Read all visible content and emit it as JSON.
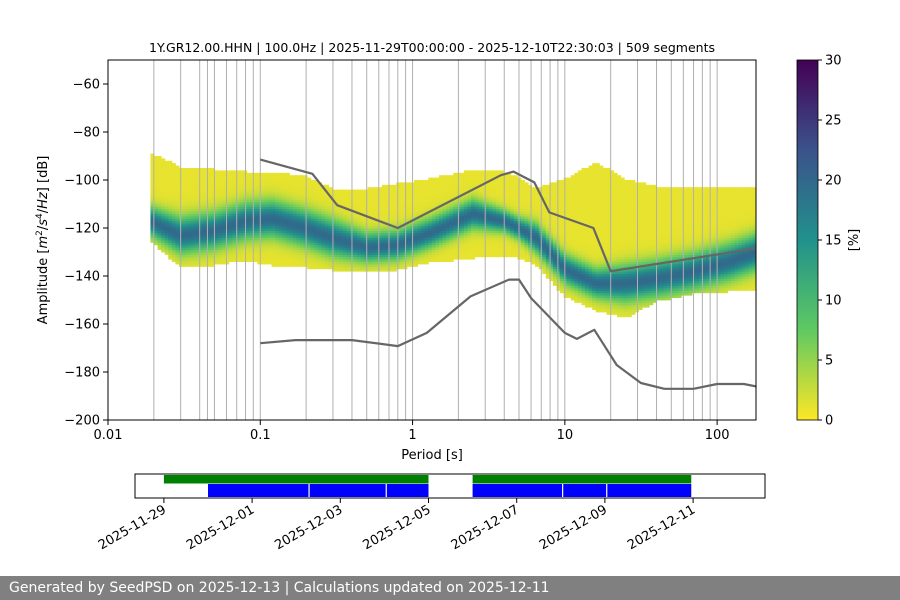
{
  "chart_data": {
    "type": "heatmap",
    "title": "1Y.GR12.00.HHN | 100.0Hz | 2025-11-29T00:00:00 - 2025-12-10T22:30:03 | 509 segments",
    "xlabel": "Period [s]",
    "ylabel_parts": [
      "Amplitude [",
      "m",
      "2",
      "/",
      "s",
      "4",
      "/",
      "Hz",
      "] [dB]"
    ],
    "xscale": "log",
    "xlim": [
      0.01,
      180
    ],
    "ylim": [
      -200,
      -50
    ],
    "x_ticks": [
      {
        "v": 0.01,
        "label": "0.01"
      },
      {
        "v": 0.1,
        "label": "0.1"
      },
      {
        "v": 1,
        "label": "1"
      },
      {
        "v": 10,
        "label": "10"
      },
      {
        "v": 100,
        "label": "100"
      }
    ],
    "y_ticks": [
      {
        "v": -60,
        "label": "−60"
      },
      {
        "v": -80,
        "label": "−80"
      },
      {
        "v": -100,
        "label": "−100"
      },
      {
        "v": -120,
        "label": "−120"
      },
      {
        "v": -140,
        "label": "−140"
      },
      {
        "v": -160,
        "label": "−160"
      },
      {
        "v": -180,
        "label": "−180"
      },
      {
        "v": -200,
        "label": "−200"
      }
    ],
    "grid_periods": [
      0.02,
      0.03,
      0.04,
      0.045,
      0.05,
      0.06,
      0.07,
      0.08,
      0.09,
      0.1,
      0.2,
      0.3,
      0.4,
      0.5,
      0.6,
      0.7,
      0.8,
      0.9,
      1,
      2,
      3,
      4,
      5,
      6,
      7,
      8,
      9,
      10,
      20,
      30,
      40,
      50,
      60,
      70,
      80,
      90,
      100
    ],
    "colorbar": {
      "label": "[%]",
      "min": 0,
      "max": 30,
      "ticks": [
        0,
        5,
        10,
        15,
        20,
        25,
        30
      ]
    },
    "reference_curves": [
      {
        "points": [
          [
            0.1,
            -91.5
          ],
          [
            0.22,
            -97.4
          ],
          [
            0.32,
            -110.5
          ],
          [
            0.8,
            -120.0
          ],
          [
            3.8,
            -98.0
          ],
          [
            4.6,
            -96.5
          ],
          [
            6.3,
            -101.0
          ],
          [
            7.9,
            -113.5
          ],
          [
            15.4,
            -120.0
          ],
          [
            20,
            -138.0
          ],
          [
            180,
            -128.5
          ]
        ]
      },
      {
        "points": [
          [
            0.1,
            -168.0
          ],
          [
            0.17,
            -166.7
          ],
          [
            0.4,
            -166.7
          ],
          [
            0.8,
            -169.2
          ],
          [
            1.24,
            -163.7
          ],
          [
            2.4,
            -148.5
          ],
          [
            4.3,
            -141.5
          ],
          [
            5.0,
            -141.5
          ],
          [
            6.0,
            -149.2
          ],
          [
            10,
            -163.7
          ],
          [
            12,
            -166.2
          ],
          [
            15.6,
            -162.4
          ],
          [
            21.9,
            -177.1
          ],
          [
            31.6,
            -184.6
          ],
          [
            45,
            -187.0
          ],
          [
            70,
            -187.0
          ],
          [
            100,
            -185.0
          ],
          [
            150,
            -185.0
          ],
          [
            180,
            -186.0
          ]
        ]
      }
    ],
    "psd_ridge": [
      {
        "p": 0.019,
        "center": -117,
        "spread": 4,
        "low": -125,
        "high": -89
      },
      {
        "p": 0.03,
        "center": -123,
        "spread": 5,
        "low": -136,
        "high": -95
      },
      {
        "p": 0.05,
        "center": -121,
        "spread": 5,
        "low": -135,
        "high": -96
      },
      {
        "p": 0.08,
        "center": -117,
        "spread": 5,
        "low": -133,
        "high": -97
      },
      {
        "p": 0.12,
        "center": -116,
        "spread": 5,
        "low": -135,
        "high": -97
      },
      {
        "p": 0.2,
        "center": -120,
        "spread": 5,
        "low": -136,
        "high": -99
      },
      {
        "p": 0.3,
        "center": -124,
        "spread": 5,
        "low": -137,
        "high": -104
      },
      {
        "p": 0.5,
        "center": -128,
        "spread": 4,
        "low": -138,
        "high": -104
      },
      {
        "p": 0.8,
        "center": -127,
        "spread": 4,
        "low": -137,
        "high": -102
      },
      {
        "p": 1.3,
        "center": -122,
        "spread": 4,
        "low": -134,
        "high": -100
      },
      {
        "p": 2.5,
        "center": -114,
        "spread": 4,
        "low": -132,
        "high": -96
      },
      {
        "p": 4.0,
        "center": -117,
        "spread": 3,
        "low": -131,
        "high": -97
      },
      {
        "p": 5.0,
        "center": -120,
        "spread": 3,
        "low": -132,
        "high": -99
      },
      {
        "p": 6.5,
        "center": -124,
        "spread": 4,
        "low": -135,
        "high": -104
      },
      {
        "p": 10,
        "center": -137,
        "spread": 4,
        "low": -148,
        "high": -100
      },
      {
        "p": 16,
        "center": -143,
        "spread": 4,
        "low": -154,
        "high": -93
      },
      {
        "p": 25,
        "center": -143,
        "spread": 5,
        "low": -157,
        "high": -100
      },
      {
        "p": 40,
        "center": -141,
        "spread": 5,
        "low": -150,
        "high": -103
      },
      {
        "p": 70,
        "center": -138,
        "spread": 5,
        "low": -147,
        "high": -104
      },
      {
        "p": 120,
        "center": -134,
        "spread": 5,
        "low": -146,
        "high": -103
      },
      {
        "p": 180,
        "center": -130,
        "spread": 5,
        "low": -146,
        "high": -103
      }
    ],
    "timeline": {
      "x_ticks": [
        "2025-11-29",
        "2025-12-01",
        "2025-12-03",
        "2025-12-05",
        "2025-12-07",
        "2025-12-09",
        "2025-12-11"
      ],
      "green_bars": [
        [
          "2025-11-29T00:00",
          "2025-12-05T00:00"
        ],
        [
          "2025-12-06T00:00",
          "2025-12-10T23:00"
        ]
      ],
      "blue_bars": [
        [
          "2025-11-30T00:00",
          "2025-12-05T00:00"
        ],
        [
          "2025-12-06T00:00",
          "2025-12-10T23:00"
        ]
      ],
      "blue_gaps": [
        "2025-12-02T07:00",
        "2025-12-04T01:00",
        "2025-12-08T01:00",
        "2025-12-09T01:00"
      ]
    }
  },
  "colors": {
    "reference_curve": "#666666",
    "grid": "#b0b0b0",
    "green_bar": "#008000",
    "blue_bar": "#0000ff",
    "footer_bg": "#808080"
  },
  "footer": {
    "text": "Generated by SeedPSD on 2025-12-13 | Calculations updated on 2025-12-11"
  }
}
